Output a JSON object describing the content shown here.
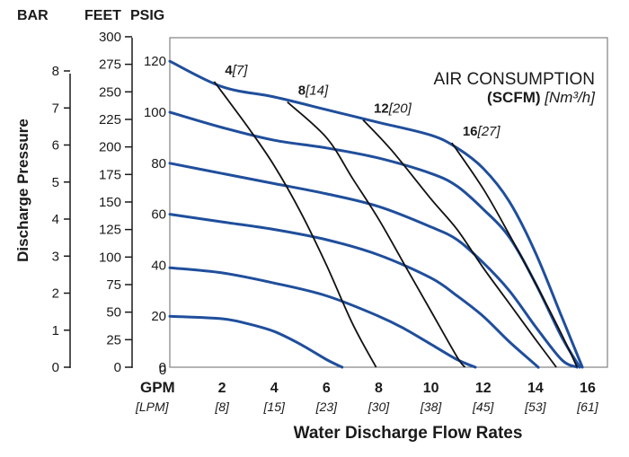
{
  "chart_data": {
    "type": "line",
    "xlabel": "Water Discharge Flow Rates",
    "ylabel": "Discharge Pressure",
    "unit_headers": {
      "bar": "BAR",
      "feet": "FEET",
      "psig": "PSIG"
    },
    "x_unit_primary": "GPM",
    "x_unit_secondary": "[LPM]",
    "xlim": [
      0,
      16.5
    ],
    "ylim": [
      0,
      125
    ],
    "x_ticks": [
      {
        "gpm": "0",
        "lpm": ""
      },
      {
        "gpm": "2",
        "lpm": "[8]"
      },
      {
        "gpm": "4",
        "lpm": "[15]"
      },
      {
        "gpm": "6",
        "lpm": "[23]"
      },
      {
        "gpm": "8",
        "lpm": "[30]"
      },
      {
        "gpm": "10",
        "lpm": "[38]"
      },
      {
        "gpm": "12",
        "lpm": "[45]"
      },
      {
        "gpm": "14",
        "lpm": "[53]"
      },
      {
        "gpm": "16",
        "lpm": "[61]"
      }
    ],
    "y_ticks_psig": [
      "0",
      "20",
      "40",
      "60",
      "80",
      "100",
      "120"
    ],
    "y_ticks_bar": [
      "0",
      "1",
      "2",
      "3",
      "4",
      "5",
      "6",
      "7",
      "8"
    ],
    "y_ticks_feet": [
      "0",
      "25",
      "50",
      "75",
      "100",
      "125",
      "150",
      "175",
      "200",
      "225",
      "250",
      "275",
      "300"
    ],
    "legend": {
      "title_line1": "AIR CONSUMPTION",
      "title_line2_bold": "(SCFM)",
      "title_line2_italic": "[Nm³/h]"
    },
    "pressure_series": [
      {
        "inlet_psig": 120,
        "points": [
          [
            0,
            120
          ],
          [
            2,
            110
          ],
          [
            4,
            106
          ],
          [
            6,
            101
          ],
          [
            8,
            96
          ],
          [
            10,
            91
          ],
          [
            11,
            86
          ],
          [
            12,
            78
          ],
          [
            13,
            65
          ],
          [
            14,
            45
          ],
          [
            15,
            20
          ],
          [
            15.8,
            0
          ]
        ]
      },
      {
        "inlet_psig": 100,
        "points": [
          [
            0,
            100
          ],
          [
            2,
            94
          ],
          [
            4,
            89
          ],
          [
            6,
            86
          ],
          [
            8,
            82
          ],
          [
            10,
            76
          ],
          [
            11,
            71
          ],
          [
            12,
            62
          ],
          [
            13,
            51
          ],
          [
            14,
            33
          ],
          [
            15,
            12
          ],
          [
            15.7,
            0
          ]
        ]
      },
      {
        "inlet_psig": 80,
        "points": [
          [
            0,
            80
          ],
          [
            2,
            76
          ],
          [
            4,
            72
          ],
          [
            6,
            68
          ],
          [
            8,
            63
          ],
          [
            10,
            55
          ],
          [
            11,
            50
          ],
          [
            12,
            41
          ],
          [
            13,
            30
          ],
          [
            14,
            16
          ],
          [
            15,
            3
          ],
          [
            15.6,
            0
          ]
        ]
      },
      {
        "inlet_psig": 60,
        "points": [
          [
            0,
            60
          ],
          [
            2,
            57
          ],
          [
            4,
            54
          ],
          [
            6,
            50
          ],
          [
            8,
            44
          ],
          [
            10,
            35
          ],
          [
            11,
            28
          ],
          [
            12,
            20
          ],
          [
            13,
            10
          ],
          [
            14,
            1
          ],
          [
            14.1,
            0
          ]
        ]
      },
      {
        "inlet_psig": 40,
        "points": [
          [
            0,
            39
          ],
          [
            2,
            37
          ],
          [
            4,
            33
          ],
          [
            6,
            28
          ],
          [
            8,
            20
          ],
          [
            9,
            15
          ],
          [
            10,
            9
          ],
          [
            11,
            3
          ],
          [
            11.7,
            0
          ]
        ]
      },
      {
        "inlet_psig": 20,
        "points": [
          [
            0,
            20
          ],
          [
            2,
            19
          ],
          [
            3,
            17
          ],
          [
            4,
            14
          ],
          [
            5,
            9
          ],
          [
            6,
            3
          ],
          [
            6.6,
            0
          ]
        ]
      }
    ],
    "air_consumption_series": [
      {
        "label_bold": "4",
        "label_italic": "[7]",
        "points": [
          [
            1.7,
            112
          ],
          [
            3,
            94
          ],
          [
            4,
            79
          ],
          [
            5,
            61
          ],
          [
            6,
            40
          ],
          [
            7,
            17
          ],
          [
            7.9,
            0
          ]
        ]
      },
      {
        "label_bold": "8",
        "label_italic": "[14]",
        "points": [
          [
            4.5,
            104
          ],
          [
            6,
            90
          ],
          [
            7,
            74
          ],
          [
            8,
            58
          ],
          [
            9,
            40
          ],
          [
            10,
            22
          ],
          [
            11,
            4
          ],
          [
            11.3,
            0
          ]
        ]
      },
      {
        "label_bold": "12",
        "label_italic": "[20]",
        "points": [
          [
            7.4,
            97
          ],
          [
            8.5,
            85
          ],
          [
            10,
            66
          ],
          [
            11,
            54
          ],
          [
            12,
            39
          ],
          [
            13,
            25
          ],
          [
            14,
            11
          ],
          [
            14.8,
            0
          ]
        ]
      },
      {
        "label_bold": "16",
        "label_italic": "[27]",
        "points": [
          [
            10.8,
            88
          ],
          [
            12,
            70
          ],
          [
            13,
            52
          ],
          [
            14,
            33
          ],
          [
            15,
            13
          ],
          [
            15.6,
            0
          ]
        ]
      }
    ],
    "grid": false
  }
}
